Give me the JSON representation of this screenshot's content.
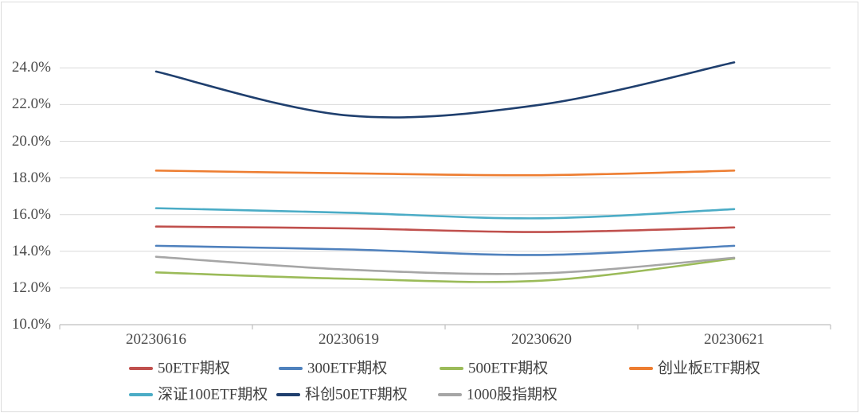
{
  "chart_data": {
    "type": "line",
    "title": "",
    "categories": [
      "20230616",
      "20230619",
      "20230620",
      "20230621"
    ],
    "series": [
      {
        "name": "50ETF期权",
        "color": "#C0504D",
        "values": [
          15.35,
          15.25,
          15.05,
          15.3
        ]
      },
      {
        "name": "300ETF期权",
        "color": "#4F81BD",
        "values": [
          14.3,
          14.1,
          13.8,
          14.3
        ]
      },
      {
        "name": "500ETF期权",
        "color": "#9BBB59",
        "values": [
          12.85,
          12.5,
          12.4,
          13.6
        ]
      },
      {
        "name": "创业板ETF期权",
        "color": "#ED7D31",
        "values": [
          18.4,
          18.25,
          18.15,
          18.4
        ]
      },
      {
        "name": "深证100ETF期权",
        "color": "#4BACC6",
        "values": [
          16.35,
          16.1,
          15.8,
          16.3
        ]
      },
      {
        "name": "科创50ETF期权",
        "color": "#1F3F6E",
        "values": [
          23.8,
          21.4,
          22.0,
          24.3
        ]
      },
      {
        "name": "1000股指期权",
        "color": "#A6A6A6",
        "values": [
          13.7,
          13.0,
          12.8,
          13.65
        ]
      }
    ],
    "ytick_labels": [
      "10.0%",
      "12.0%",
      "14.0%",
      "16.0%",
      "18.0%",
      "20.0%",
      "22.0%",
      "24.0%"
    ],
    "ytick_values": [
      10,
      12,
      14,
      16,
      18,
      20,
      22,
      24
    ],
    "ylim": [
      10,
      25.2
    ],
    "grid": "horizontal",
    "line_style": "smooth",
    "legend_position": "bottom",
    "colors": {
      "gridline": "#D9D9D9",
      "axis": "#BFBFBF",
      "tick_text": "#4a4a4a",
      "legend_text": "#404040",
      "background": "#FFFFFF"
    }
  }
}
